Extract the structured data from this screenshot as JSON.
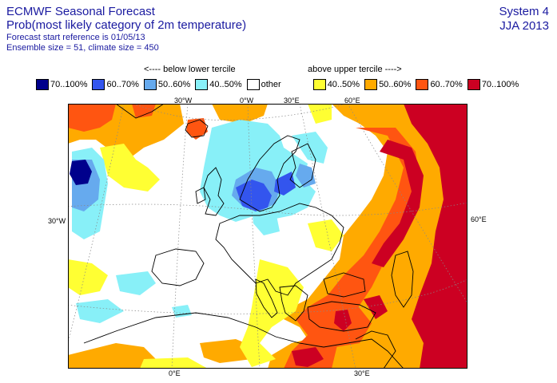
{
  "header": {
    "title": "ECMWF Seasonal Forecast",
    "subtitle": "Prob(most likely category of 2m temperature)",
    "start_ref": "Forecast start reference is 01/05/13",
    "ensemble": "Ensemble size = 51, climate size = 450",
    "system": "System 4",
    "season": "JJA 2013"
  },
  "legend": {
    "below_caption": "<---- below lower tercile",
    "above_caption": "above upper tercile ---->",
    "items": [
      {
        "label": "70..100%",
        "color": "#00008c"
      },
      {
        "label": "60..70%",
        "color": "#3355ee"
      },
      {
        "label": "50..60%",
        "color": "#66aaee"
      },
      {
        "label": "40..50%",
        "color": "#88f0f8"
      },
      {
        "label": "other",
        "color": "#ffffff"
      },
      {
        "label": "40..50%",
        "color": "#ffff33"
      },
      {
        "label": "50..60%",
        "color": "#ffaa00"
      },
      {
        "label": "60..70%",
        "color": "#ff5511"
      },
      {
        "label": "70..100%",
        "color": "#cc0022"
      }
    ]
  },
  "map": {
    "lon_labels_top": [
      "30°W",
      "0°W",
      "30°E",
      "60°E"
    ],
    "lon_labels_bottom": [
      "0°E",
      "30°E"
    ],
    "lat_label_left": "30°W",
    "lat_label_right": "60°E"
  }
}
